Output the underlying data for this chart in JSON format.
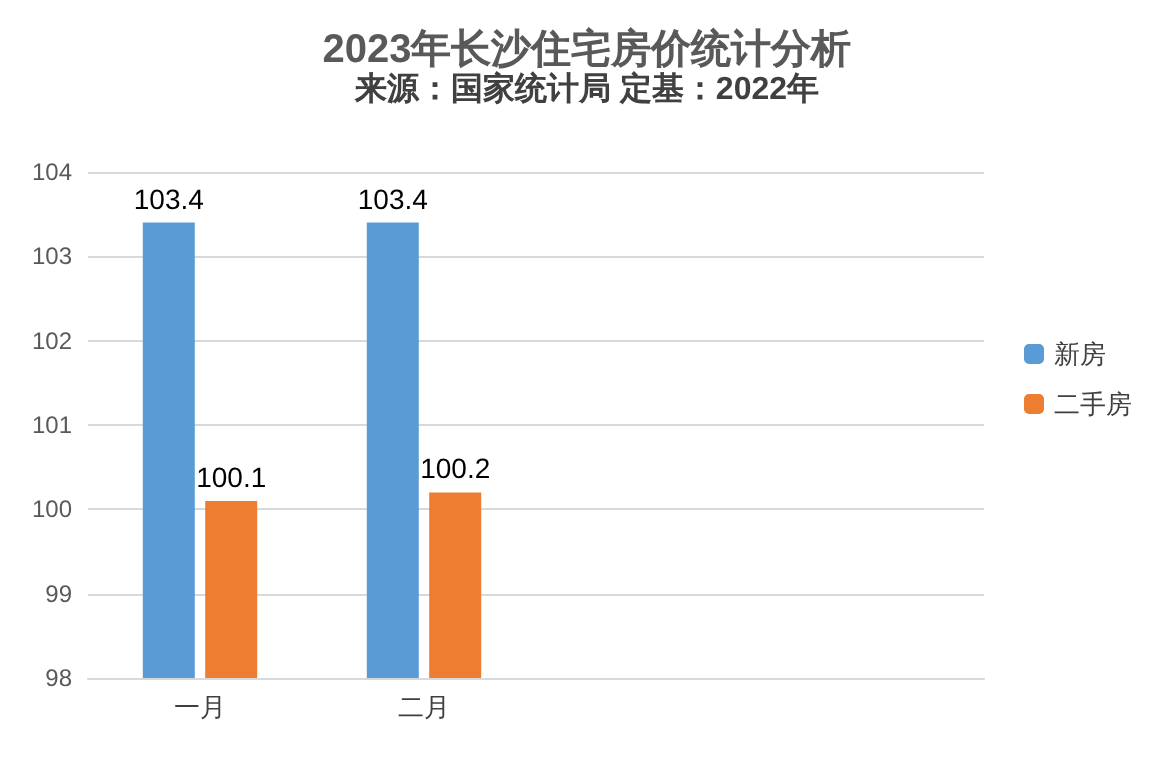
{
  "chart_data": {
    "type": "bar",
    "title": "2023年长沙住宅房价统计分析",
    "subtitle": "来源：国家统计局 定基：2022年",
    "categories": [
      "一月",
      "二月",
      null,
      null
    ],
    "series": [
      {
        "name": "新房",
        "color": "#5b9bd5",
        "values": [
          103.4,
          103.4,
          null,
          null
        ]
      },
      {
        "name": "二手房",
        "color": "#ed7d31",
        "values": [
          100.1,
          100.2,
          null,
          null
        ]
      }
    ],
    "ylim": [
      98,
      104
    ],
    "yticks": [
      98,
      99,
      100,
      101,
      102,
      103,
      104
    ],
    "grid": "y",
    "legend": "right",
    "data_labels": true
  }
}
